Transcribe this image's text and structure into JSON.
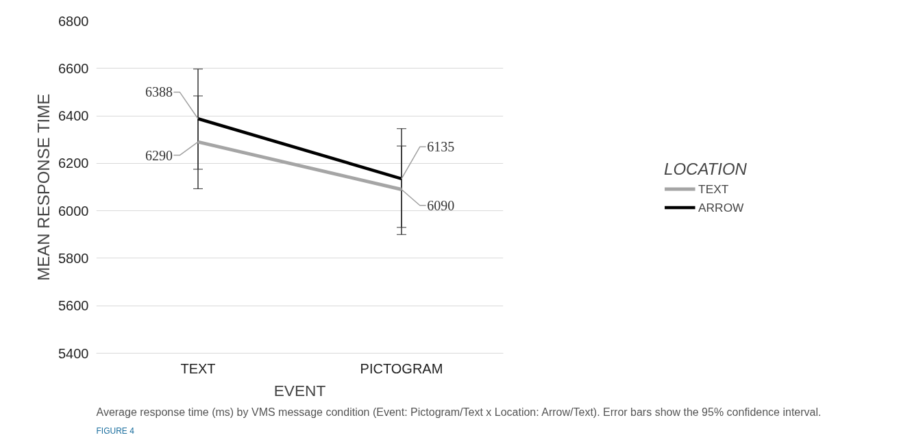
{
  "chart_data": {
    "type": "line",
    "xlabel": "EVENT",
    "ylabel": "MEAN RESPONSE TIME",
    "legend_title": "LOCATION",
    "categories": [
      "TEXT",
      "PICTOGRAM"
    ],
    "series": [
      {
        "name": "TEXT",
        "color": "#a5a5a5",
        "values": [
          6290,
          6090
        ],
        "value_labels": [
          "6290",
          "6090"
        ],
        "errors": [
          [
            6093,
            6484
          ],
          [
            5900,
            6273
          ]
        ]
      },
      {
        "name": "ARROW",
        "color": "#000000",
        "values": [
          6388,
          6135
        ],
        "value_labels": [
          "6388",
          "6135"
        ],
        "errors": [
          [
            6175,
            6597
          ],
          [
            5930,
            6346
          ]
        ]
      }
    ],
    "ylim": [
      5400,
      6800
    ],
    "yticks": [
      5400,
      5600,
      5800,
      6000,
      6200,
      6400,
      6600,
      6800
    ],
    "grid": "y",
    "legend": "right",
    "marker": "none",
    "line_style": "solid",
    "annotations": [
      "FIGURE 4",
      "Average response time (ms) by VMS message condition (Event: Pictogram/Text x Location: Arrow/Text). Error bars show the 95% confidence interval."
    ]
  }
}
